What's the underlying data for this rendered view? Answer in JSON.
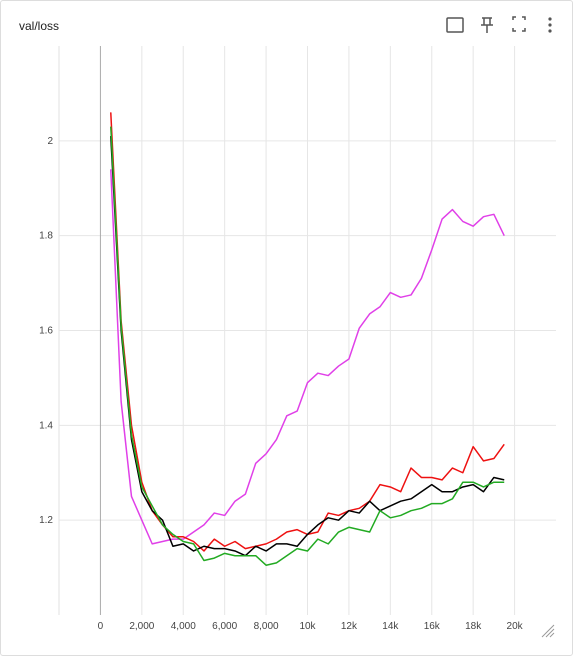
{
  "chart_data": {
    "type": "line",
    "title": "val/loss",
    "x": [
      500,
      1000,
      1500,
      2000,
      2500,
      3000,
      3500,
      4000,
      4500,
      5000,
      5500,
      6000,
      6500,
      7000,
      7500,
      8000,
      8500,
      9000,
      9500,
      10000,
      10500,
      11000,
      11500,
      12000,
      12500,
      13000,
      13500,
      14000,
      14500,
      15000,
      15500,
      16000,
      16500,
      17000,
      17500,
      18000,
      18500,
      19000,
      19500
    ],
    "series": [
      {
        "color": "#e040e8",
        "values": [
          1.94,
          1.45,
          1.25,
          1.2,
          1.15,
          1.155,
          1.16,
          1.16,
          1.175,
          1.19,
          1.215,
          1.21,
          1.24,
          1.255,
          1.32,
          1.34,
          1.37,
          1.42,
          1.43,
          1.49,
          1.51,
          1.505,
          1.525,
          1.54,
          1.605,
          1.635,
          1.65,
          1.68,
          1.67,
          1.675,
          1.71,
          1.77,
          1.835,
          1.855,
          1.83,
          1.82,
          1.84,
          1.845,
          1.8
        ]
      },
      {
        "color": "#ee1111",
        "values": [
          2.06,
          1.62,
          1.4,
          1.28,
          1.22,
          1.19,
          1.165,
          1.165,
          1.155,
          1.135,
          1.16,
          1.145,
          1.155,
          1.14,
          1.145,
          1.15,
          1.16,
          1.175,
          1.18,
          1.17,
          1.175,
          1.215,
          1.21,
          1.22,
          1.225,
          1.24,
          1.275,
          1.27,
          1.26,
          1.31,
          1.29,
          1.29,
          1.285,
          1.31,
          1.3,
          1.355,
          1.325,
          1.33,
          1.36
        ]
      },
      {
        "color": "#000000",
        "values": [
          2.01,
          1.6,
          1.37,
          1.26,
          1.22,
          1.2,
          1.145,
          1.15,
          1.135,
          1.145,
          1.14,
          1.14,
          1.135,
          1.125,
          1.145,
          1.135,
          1.15,
          1.15,
          1.145,
          1.17,
          1.19,
          1.205,
          1.2,
          1.22,
          1.215,
          1.24,
          1.22,
          1.23,
          1.24,
          1.245,
          1.26,
          1.275,
          1.26,
          1.26,
          1.27,
          1.275,
          1.26,
          1.29,
          1.285
        ]
      },
      {
        "color": "#22aa22",
        "values": [
          2.03,
          1.61,
          1.38,
          1.27,
          1.23,
          1.19,
          1.17,
          1.155,
          1.15,
          1.115,
          1.12,
          1.13,
          1.125,
          1.125,
          1.125,
          1.105,
          1.11,
          1.125,
          1.14,
          1.135,
          1.16,
          1.15,
          1.175,
          1.185,
          1.18,
          1.175,
          1.22,
          1.205,
          1.21,
          1.22,
          1.225,
          1.235,
          1.235,
          1.245,
          1.28,
          1.28,
          1.27,
          1.28,
          1.28
        ]
      }
    ],
    "xlim": [
      -2000,
      22000
    ],
    "xticks": [
      0,
      {
        "value": 2000,
        "label": "2,000"
      },
      {
        "value": 4000,
        "label": "4,000"
      },
      {
        "value": 6000,
        "label": "6,000"
      },
      {
        "value": 8000,
        "label": "8,000"
      },
      {
        "value": 10000,
        "label": "10k"
      },
      {
        "value": 12000,
        "label": "12k"
      },
      {
        "value": 14000,
        "label": "14k"
      },
      {
        "value": 16000,
        "label": "16k"
      },
      {
        "value": 18000,
        "label": "18k"
      },
      {
        "value": 20000,
        "label": "20k"
      }
    ],
    "ylim": [
      1.0,
      2.2
    ],
    "yticks": [
      1.2,
      1.4,
      1.6,
      1.8,
      2
    ],
    "grid": true
  }
}
